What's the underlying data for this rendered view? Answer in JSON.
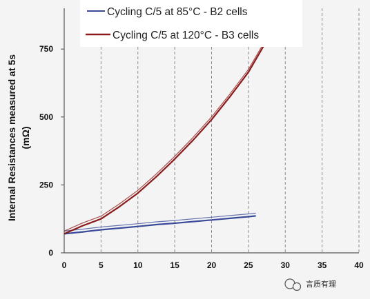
{
  "chart_data": {
    "type": "line",
    "title": "",
    "xlabel": "",
    "ylabel": "Internal Resistances measured at 5s",
    "ylabel_unit": "(mΩ)",
    "xlim": [
      0,
      40
    ],
    "ylim": [
      0,
      900
    ],
    "x_ticks": [
      0,
      5,
      10,
      15,
      20,
      25,
      30,
      35,
      40
    ],
    "y_ticks": [
      0,
      250,
      500,
      750
    ],
    "grid": "vertical dashed",
    "legend_position": "top",
    "series": [
      {
        "name": "Cycling C/5 at 85°C - B2 cells",
        "color": "#3a4a9a",
        "x": [
          0,
          2.5,
          5,
          7.5,
          10,
          12.5,
          15,
          17.5,
          20,
          22.5,
          25,
          26
        ],
        "y": [
          70,
          77,
          85,
          91,
          97,
          104,
          109,
          115,
          121,
          127,
          133,
          136
        ]
      },
      {
        "name": "Cycling C/5 at 120°C - B3 cells",
        "color": "#8b1a1a",
        "x": [
          0,
          2.5,
          5,
          7.5,
          10,
          12.5,
          15,
          17.5,
          20,
          22.5,
          25,
          28
        ],
        "y": [
          70,
          100,
          125,
          170,
          220,
          280,
          345,
          415,
          490,
          575,
          665,
          805
        ]
      }
    ]
  },
  "watermark": {
    "text": "言质有理",
    "icon": "wechat-icon"
  }
}
